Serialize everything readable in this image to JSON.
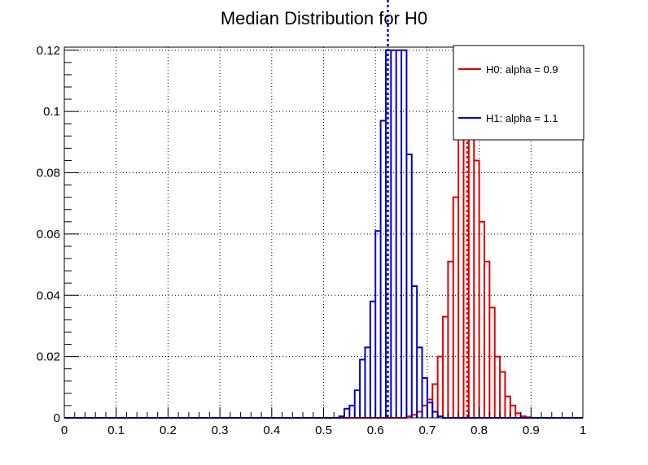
{
  "chart_data": {
    "type": "histogram",
    "title": "Median Distribution for H0",
    "xlabel": "",
    "ylabel": "",
    "xlim": [
      0,
      1
    ],
    "ylim": [
      0,
      0.121
    ],
    "grid": true,
    "x_ticks": [
      0,
      0.1,
      0.2,
      0.3,
      0.4,
      0.5,
      0.6,
      0.7,
      0.8,
      0.9,
      1
    ],
    "x_tick_labels": [
      "0",
      "0.1",
      "0.2",
      "0.3",
      "0.4",
      "0.5",
      "0.6",
      "0.7",
      "0.8",
      "0.9",
      "1"
    ],
    "y_ticks": [
      0,
      0.02,
      0.04,
      0.06,
      0.08,
      0.1,
      0.12
    ],
    "y_tick_labels": [
      "0",
      "0.02",
      "0.04",
      "0.06",
      "0.08",
      "0.1",
      "0.12"
    ],
    "bin_width": 0.01,
    "legend_position": "top-right",
    "series": [
      {
        "name": "H0: alpha = 0.9",
        "color": "#e00000",
        "bin_starts": [
          0.66,
          0.67,
          0.68,
          0.69,
          0.7,
          0.71,
          0.72,
          0.73,
          0.74,
          0.75,
          0.76,
          0.77,
          0.78,
          0.79,
          0.8,
          0.81,
          0.82,
          0.83,
          0.84,
          0.85,
          0.86,
          0.87,
          0.88,
          0.89
        ],
        "values": [
          0.0005,
          0.001,
          0.002,
          0.004,
          0.006,
          0.011,
          0.02,
          0.033,
          0.051,
          0.072,
          0.092,
          0.101,
          0.099,
          0.084,
          0.064,
          0.051,
          0.036,
          0.02,
          0.015,
          0.007,
          0.004,
          0.0015,
          0.0005,
          0.0002
        ],
        "mean_line_x": 0.777
      },
      {
        "name": "H1: alpha = 1.1",
        "color": "#0000cc",
        "bin_starts": [
          0.53,
          0.54,
          0.55,
          0.56,
          0.57,
          0.58,
          0.59,
          0.6,
          0.61,
          0.62,
          0.63,
          0.64,
          0.65,
          0.66,
          0.67,
          0.68,
          0.69,
          0.7,
          0.71,
          0.72
        ],
        "values": [
          0.0005,
          0.003,
          0.004,
          0.009,
          0.019,
          0.023,
          0.038,
          0.061,
          0.097,
          0.12,
          0.12,
          0.12,
          0.12,
          0.086,
          0.043,
          0.023,
          0.013,
          0.005,
          0.002,
          0.0005
        ],
        "mean_line_x": 0.624
      }
    ]
  }
}
